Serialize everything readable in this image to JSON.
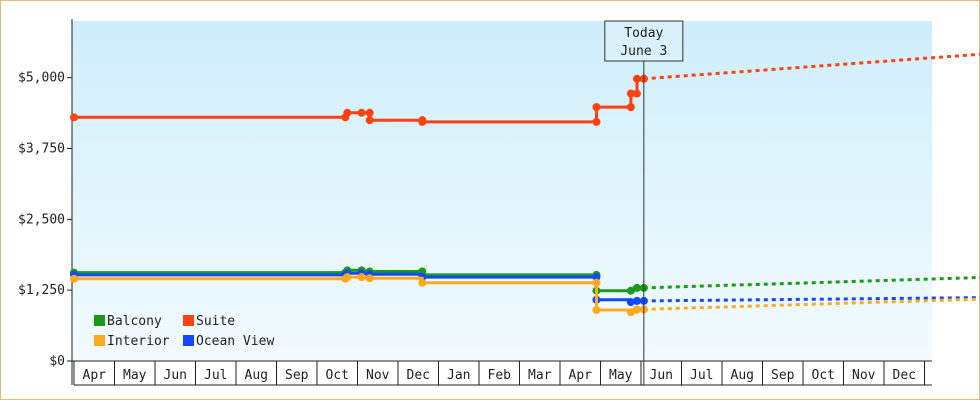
{
  "chart_data": {
    "type": "line",
    "title": "",
    "xlabel": "",
    "ylabel": "",
    "ylim": [
      0,
      6000
    ],
    "y_ticks": [
      "$0",
      "$1,250",
      "$2,500",
      "$3,750",
      "$5,000"
    ],
    "y_tick_values": [
      0,
      1250,
      2500,
      3750,
      5000
    ],
    "x_ticks": [
      "Apr",
      "May",
      "Jun",
      "Jul",
      "Aug",
      "Sep",
      "Oct",
      "Nov",
      "Dec",
      "Jan",
      "Feb",
      "Mar",
      "Apr",
      "May",
      "Jun",
      "Jul",
      "Aug",
      "Sep",
      "Oct",
      "Nov",
      "Dec"
    ],
    "today_label_line1": "Today",
    "today_label_line2": "June 3",
    "today_month_index": 14.07,
    "legend_placement": "bottom-left",
    "colors": {
      "Balcony": "#1a9a1a",
      "Suite": "#ff4010",
      "Interior": "#ffaa1e",
      "Ocean View": "#1448ff"
    },
    "series": [
      {
        "name": "Suite",
        "points": [
          [
            0,
            4300
          ],
          [
            6.7,
            4300
          ],
          [
            6.7,
            4380
          ],
          [
            6.75,
            4380
          ],
          [
            7.1,
            4380
          ],
          [
            7.3,
            4380
          ],
          [
            7.3,
            4250
          ],
          [
            8.6,
            4250
          ],
          [
            8.6,
            4220
          ],
          [
            12.9,
            4220
          ],
          [
            12.9,
            4480
          ],
          [
            13.75,
            4480
          ],
          [
            13.75,
            4720
          ],
          [
            13.9,
            4720
          ],
          [
            13.9,
            4980
          ],
          [
            14.07,
            4980
          ]
        ],
        "markers": [
          [
            0,
            4300
          ],
          [
            6.7,
            4300
          ],
          [
            6.75,
            4380
          ],
          [
            7.1,
            4380
          ],
          [
            7.3,
            4380
          ],
          [
            7.3,
            4250
          ],
          [
            8.6,
            4250
          ],
          [
            8.6,
            4220
          ],
          [
            12.9,
            4220
          ],
          [
            12.9,
            4480
          ],
          [
            13.75,
            4480
          ],
          [
            13.75,
            4720
          ],
          [
            13.9,
            4720
          ],
          [
            13.9,
            4980
          ],
          [
            14.07,
            4980
          ]
        ],
        "forecast": [
          [
            14.07,
            4980
          ],
          [
            22.7,
            5430
          ]
        ]
      },
      {
        "name": "Balcony",
        "points": [
          [
            0,
            1560
          ],
          [
            6.7,
            1560
          ],
          [
            6.75,
            1600
          ],
          [
            7.1,
            1600
          ],
          [
            7.3,
            1580
          ],
          [
            8.6,
            1580
          ],
          [
            8.6,
            1520
          ],
          [
            12.9,
            1520
          ],
          [
            12.9,
            1240
          ],
          [
            13.75,
            1240
          ],
          [
            13.9,
            1290
          ],
          [
            14.07,
            1290
          ]
        ],
        "markers": [
          [
            0,
            1560
          ],
          [
            6.7,
            1560
          ],
          [
            6.75,
            1600
          ],
          [
            7.1,
            1600
          ],
          [
            7.3,
            1580
          ],
          [
            8.6,
            1580
          ],
          [
            8.6,
            1520
          ],
          [
            12.9,
            1520
          ],
          [
            12.9,
            1240
          ],
          [
            13.75,
            1240
          ],
          [
            13.9,
            1290
          ],
          [
            14.07,
            1290
          ]
        ],
        "forecast": [
          [
            14.07,
            1290
          ],
          [
            22.7,
            1480
          ]
        ]
      },
      {
        "name": "Ocean View",
        "points": [
          [
            0,
            1520
          ],
          [
            6.7,
            1520
          ],
          [
            6.75,
            1550
          ],
          [
            7.1,
            1550
          ],
          [
            7.3,
            1530
          ],
          [
            8.6,
            1530
          ],
          [
            8.6,
            1480
          ],
          [
            12.9,
            1480
          ],
          [
            12.9,
            1080
          ],
          [
            13.75,
            1080
          ],
          [
            13.75,
            1040
          ],
          [
            13.9,
            1040
          ],
          [
            13.9,
            1060
          ],
          [
            14.07,
            1060
          ]
        ],
        "markers": [
          [
            0,
            1520
          ],
          [
            6.7,
            1520
          ],
          [
            6.75,
            1550
          ],
          [
            7.1,
            1550
          ],
          [
            7.3,
            1530
          ],
          [
            8.6,
            1480
          ],
          [
            12.9,
            1480
          ],
          [
            12.9,
            1080
          ],
          [
            13.75,
            1040
          ],
          [
            13.9,
            1060
          ],
          [
            14.07,
            1060
          ]
        ],
        "forecast": [
          [
            14.07,
            1060
          ],
          [
            22.7,
            1120
          ]
        ]
      },
      {
        "name": "Interior",
        "points": [
          [
            0,
            1450
          ],
          [
            6.7,
            1450
          ],
          [
            6.75,
            1480
          ],
          [
            7.1,
            1480
          ],
          [
            7.3,
            1460
          ],
          [
            8.6,
            1460
          ],
          [
            8.6,
            1380
          ],
          [
            12.9,
            1380
          ],
          [
            12.9,
            900
          ],
          [
            13.75,
            900
          ],
          [
            13.75,
            860
          ],
          [
            13.9,
            860
          ],
          [
            13.9,
            910
          ],
          [
            14.07,
            910
          ]
        ],
        "markers": [
          [
            0,
            1450
          ],
          [
            6.7,
            1450
          ],
          [
            6.75,
            1480
          ],
          [
            7.1,
            1480
          ],
          [
            7.3,
            1460
          ],
          [
            8.6,
            1380
          ],
          [
            12.9,
            1380
          ],
          [
            12.9,
            900
          ],
          [
            13.75,
            860
          ],
          [
            13.9,
            910
          ],
          [
            14.07,
            910
          ]
        ],
        "forecast": [
          [
            14.07,
            910
          ],
          [
            22.7,
            1100
          ]
        ]
      }
    ]
  }
}
